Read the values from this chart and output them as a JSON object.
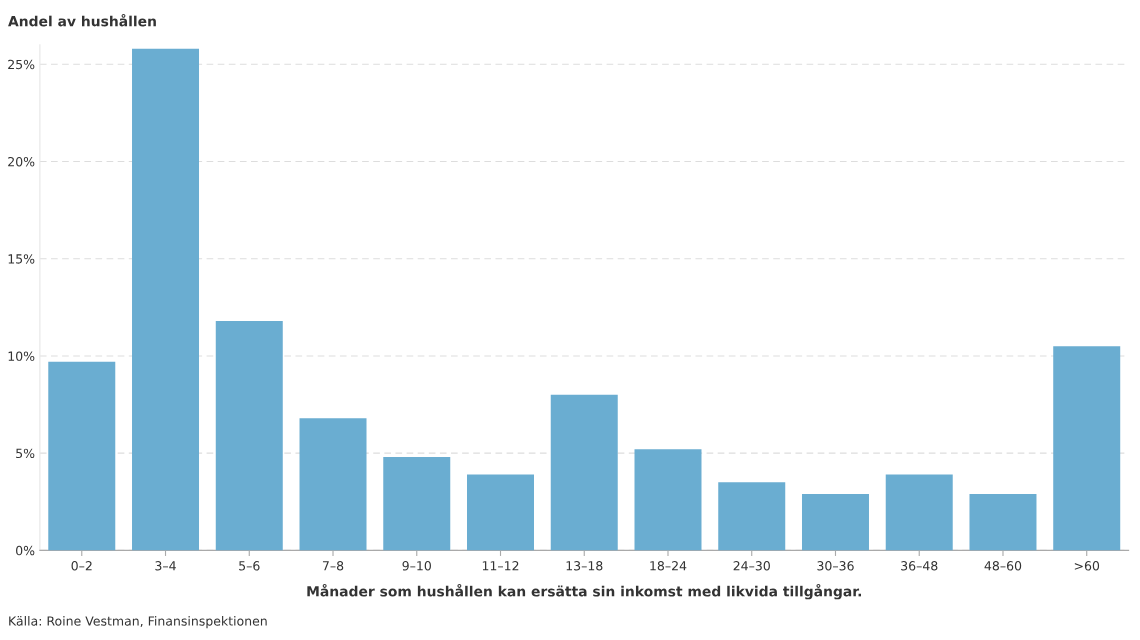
{
  "chart_data": {
    "type": "bar",
    "ylabel": "Andel av hushållen",
    "xlabel": "Månader som hushållen kan ersätta sin inkomst med likvida tillgångar.",
    "categories": [
      "0–2",
      "3–4",
      "5–6",
      "7–8",
      "9–10",
      "11–12",
      "13–18",
      "18–24",
      "24–30",
      "30–36",
      "36–48",
      "48–60",
      ">60"
    ],
    "values": [
      9.7,
      25.8,
      11.8,
      6.8,
      4.8,
      3.9,
      8.0,
      5.2,
      3.5,
      2.9,
      3.9,
      2.9,
      10.5
    ],
    "color": "#6aadd1",
    "ylim": [
      0,
      26
    ],
    "yticks": [
      {
        "value": 0,
        "label": "0%"
      },
      {
        "value": 5,
        "label": "5%"
      },
      {
        "value": 10,
        "label": "10%"
      },
      {
        "value": 15,
        "label": "15%"
      },
      {
        "value": 20,
        "label": "20%"
      },
      {
        "value": 25,
        "label": "25%"
      }
    ],
    "grid": "y",
    "annotations": [
      "Källa: Roine Vestman, Finansinspektionen"
    ]
  }
}
